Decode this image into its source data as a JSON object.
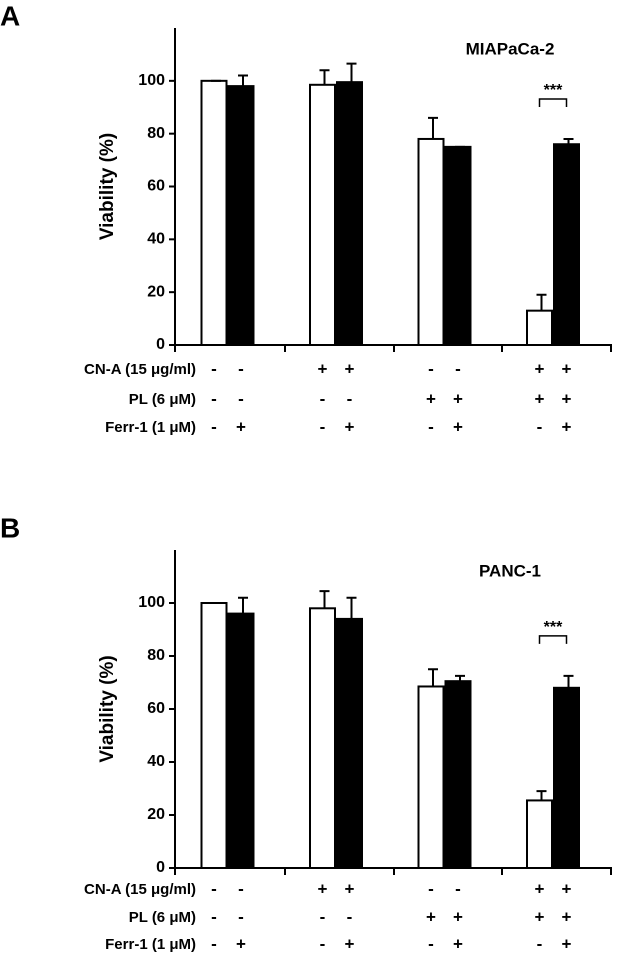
{
  "chart_data": [
    {
      "type": "bar",
      "label": "A",
      "title": "MIAPaCa-2",
      "ylabel": "Viability (%)",
      "values": [
        100,
        98,
        98.5,
        99.5,
        78,
        75,
        13,
        76
      ],
      "errors": [
        0,
        4,
        5.5,
        7,
        8,
        0,
        6,
        2
      ],
      "colors": [
        "#ffffff",
        "#000000",
        "#ffffff",
        "#000000",
        "#ffffff",
        "#000000",
        "#ffffff",
        "#000000"
      ],
      "ylim": [
        0,
        120
      ],
      "yticks": [
        0,
        20,
        40,
        60,
        80,
        100
      ],
      "annotation": "***",
      "conditions": [
        {
          "label": "CN-A (15 μg/ml)",
          "signs": [
            "-",
            "-",
            "+",
            "+",
            "-",
            "-",
            "+",
            "+"
          ]
        },
        {
          "label": "PL (6 μM)",
          "signs": [
            "-",
            "-",
            "-",
            "-",
            "+",
            "+",
            "+",
            "+"
          ]
        },
        {
          "label": "Ferr-1 (1 μM)",
          "signs": [
            "-",
            "+",
            "-",
            "+",
            "-",
            "+",
            "-",
            "+"
          ]
        }
      ]
    },
    {
      "type": "bar",
      "label": "B",
      "title": "PANC-1",
      "ylabel": "Viability (%)",
      "values": [
        100,
        96,
        98,
        94,
        68.5,
        70.5,
        25.5,
        68
      ],
      "errors": [
        0,
        6,
        6.5,
        8,
        6.5,
        2,
        3.5,
        4.5
      ],
      "colors": [
        "#ffffff",
        "#000000",
        "#ffffff",
        "#000000",
        "#ffffff",
        "#000000",
        "#ffffff",
        "#000000"
      ],
      "ylim": [
        0,
        120
      ],
      "yticks": [
        0,
        20,
        40,
        60,
        80,
        100
      ],
      "annotation": "***",
      "conditions": [
        {
          "label": "CN-A (15 μg/ml)",
          "signs": [
            "-",
            "-",
            "+",
            "+",
            "-",
            "-",
            "+",
            "+"
          ]
        },
        {
          "label": "PL (6 μM)",
          "signs": [
            "-",
            "-",
            "-",
            "-",
            "+",
            "+",
            "+",
            "+"
          ]
        },
        {
          "label": "Ferr-1 (1 μM)",
          "signs": [
            "-",
            "+",
            "-",
            "+",
            "-",
            "+",
            "-",
            "+"
          ]
        }
      ]
    }
  ]
}
